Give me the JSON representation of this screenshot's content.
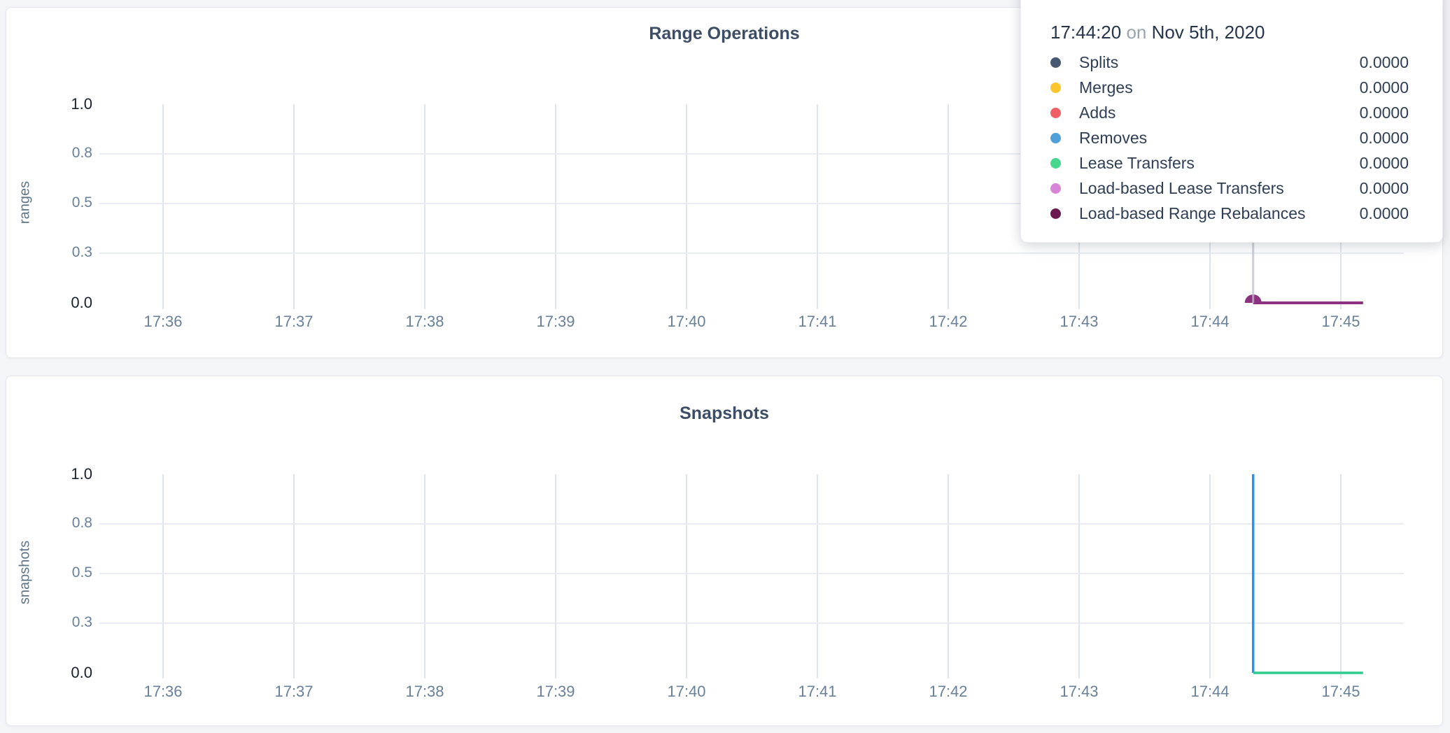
{
  "colors": {
    "page_background": "#f4f5f9",
    "card_background": "#ffffff",
    "grid_line_vertical": "#dfe5ed",
    "grid_line_horizontal": "#e9edf3",
    "crosshair": "#bcc1c9",
    "title_text": "#3e4d66",
    "tick_text": "#69809a",
    "tick_text_emphasis": "#18212e",
    "axis_label_text": "#5e7488",
    "tooltip_time_text": "#26354c",
    "tooltip_connector_text": "#97a4b3",
    "tooltip_row_text": "#2f3e55"
  },
  "tooltip": {
    "time": "17:44:20",
    "connector": "on",
    "date": "Nov 5th, 2020",
    "rows": [
      {
        "label": "Splits",
        "value": "0.0000",
        "color": "#475872"
      },
      {
        "label": "Merges",
        "value": "0.0000",
        "color": "#fcc52e"
      },
      {
        "label": "Adds",
        "value": "0.0000",
        "color": "#ef5f65"
      },
      {
        "label": "Removes",
        "value": "0.0000",
        "color": "#4f9fdb"
      },
      {
        "label": "Lease Transfers",
        "value": "0.0000",
        "color": "#47d78d"
      },
      {
        "label": "Load-based Lease Transfers",
        "value": "0.0000",
        "color": "#d885d6"
      },
      {
        "label": "Load-based Range Rebalances",
        "value": "0.0000",
        "color": "#6c194f"
      }
    ]
  },
  "chart_data": [
    {
      "type": "line",
      "title": "Range Operations",
      "ylabel": "ranges",
      "xlabel": "",
      "ylim": [
        0,
        1
      ],
      "grid": true,
      "x_range_minutes": [
        0,
        9.17
      ],
      "x_ticks": [
        {
          "minute": 0,
          "label": "17:36"
        },
        {
          "minute": 1,
          "label": "17:37"
        },
        {
          "minute": 2,
          "label": "17:38"
        },
        {
          "minute": 3,
          "label": "17:39"
        },
        {
          "minute": 4,
          "label": "17:40"
        },
        {
          "minute": 5,
          "label": "17:41"
        },
        {
          "minute": 6,
          "label": "17:42"
        },
        {
          "minute": 7,
          "label": "17:43"
        },
        {
          "minute": 8,
          "label": "17:44"
        },
        {
          "minute": 9,
          "label": "17:45"
        }
      ],
      "y_ticks": [
        {
          "value": 1.0,
          "label": "1.0",
          "emphasis": true
        },
        {
          "value": 0.75,
          "label": "0.8",
          "emphasis": false
        },
        {
          "value": 0.5,
          "label": "0.5",
          "emphasis": false
        },
        {
          "value": 0.25,
          "label": "0.3",
          "emphasis": false
        },
        {
          "value": 0.0,
          "label": "0.0",
          "emphasis": true
        }
      ],
      "series": [
        {
          "name": "Load-based Range Rebalances",
          "color": "#8d3181",
          "points": [
            [
              8.33,
              0
            ],
            [
              9.17,
              0
            ]
          ]
        }
      ],
      "hover": {
        "crosshair_minute": 8.33,
        "dot": {
          "minute": 8.33,
          "value": 0,
          "color": "#8d3181"
        }
      }
    },
    {
      "type": "line",
      "title": "Snapshots",
      "ylabel": "snapshots",
      "xlabel": "",
      "ylim": [
        0,
        1
      ],
      "grid": true,
      "x_range_minutes": [
        0,
        9.17
      ],
      "x_ticks": [
        {
          "minute": 0,
          "label": "17:36"
        },
        {
          "minute": 1,
          "label": "17:37"
        },
        {
          "minute": 2,
          "label": "17:38"
        },
        {
          "minute": 3,
          "label": "17:39"
        },
        {
          "minute": 4,
          "label": "17:40"
        },
        {
          "minute": 5,
          "label": "17:41"
        },
        {
          "minute": 6,
          "label": "17:42"
        },
        {
          "minute": 7,
          "label": "17:43"
        },
        {
          "minute": 8,
          "label": "17:44"
        },
        {
          "minute": 9,
          "label": "17:45"
        }
      ],
      "y_ticks": [
        {
          "value": 1.0,
          "label": "1.0",
          "emphasis": true
        },
        {
          "value": 0.75,
          "label": "0.8",
          "emphasis": false
        },
        {
          "value": 0.5,
          "label": "0.5",
          "emphasis": false
        },
        {
          "value": 0.25,
          "label": "0.3",
          "emphasis": false
        },
        {
          "value": 0.0,
          "label": "0.0",
          "emphasis": true
        }
      ],
      "series": [
        {
          "name": "",
          "color": "#2493f2",
          "points": [
            [
              8.33,
              1
            ],
            [
              8.33,
              0
            ]
          ]
        },
        {
          "name": "",
          "color": "#2ecb8b",
          "points": [
            [
              8.33,
              0
            ],
            [
              9.17,
              0
            ]
          ]
        }
      ]
    }
  ]
}
